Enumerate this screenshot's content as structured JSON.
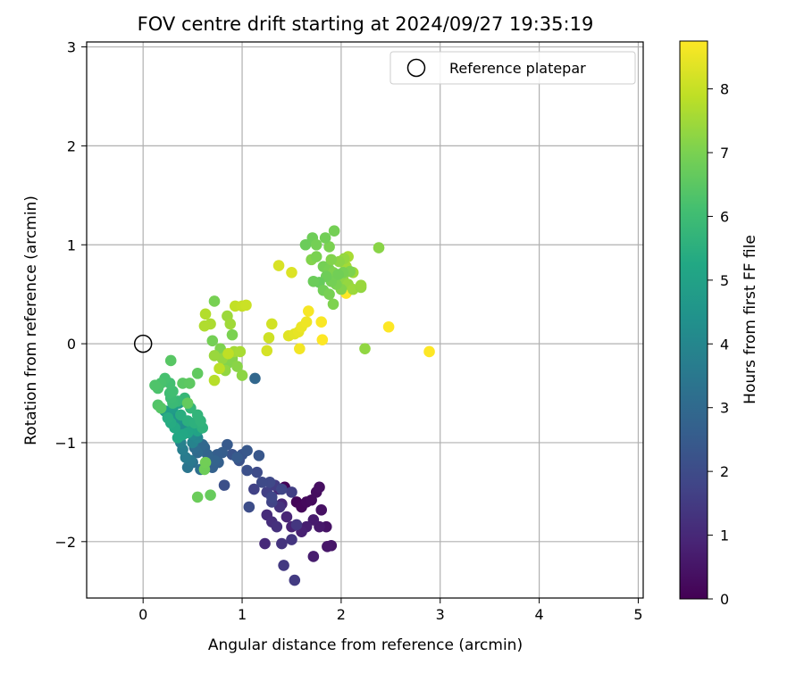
{
  "chart_data": {
    "type": "scatter",
    "title": "FOV centre drift starting at 2024/09/27 19:35:19",
    "xlabel": "Angular distance from reference (arcmin)",
    "ylabel": "Rotation from reference (arcmin)",
    "xlim": [
      -0.57,
      5.05
    ],
    "ylim": [
      -2.57,
      3.05
    ],
    "x_ticks": [
      0,
      1,
      2,
      3,
      4,
      5
    ],
    "y_ticks": [
      -2,
      -1,
      0,
      1,
      2,
      3
    ],
    "grid": true,
    "legend": {
      "position": "top-right",
      "entries": [
        "Reference platepar"
      ]
    },
    "reference_point": {
      "label": "Reference platepar",
      "x": 0,
      "y": 0
    },
    "colorbar": {
      "label": "Hours from first FF file",
      "colormap": "viridis",
      "range": [
        0,
        8.75
      ],
      "ticks": [
        0,
        1,
        2,
        3,
        4,
        5,
        6,
        7,
        8
      ]
    },
    "series": [
      {
        "points": [
          [
            1.43,
            -1.45,
            0.05
          ],
          [
            1.55,
            -1.6,
            0.1
          ],
          [
            1.6,
            -1.65,
            0.15
          ],
          [
            1.65,
            -1.6,
            0.2
          ],
          [
            1.7,
            -1.58,
            0.25
          ],
          [
            1.75,
            -1.5,
            0.3
          ],
          [
            1.78,
            -1.45,
            0.35
          ],
          [
            1.8,
            -1.68,
            0.4
          ],
          [
            1.85,
            -1.85,
            0.45
          ],
          [
            1.9,
            -2.04,
            0.5
          ],
          [
            1.86,
            -2.05,
            0.55
          ],
          [
            1.78,
            -1.85,
            0.6
          ],
          [
            1.72,
            -1.78,
            0.65
          ],
          [
            1.72,
            -2.15,
            0.7
          ],
          [
            1.65,
            -1.85,
            0.75
          ],
          [
            1.6,
            -1.9,
            0.8
          ],
          [
            1.5,
            -1.85,
            0.85
          ],
          [
            1.45,
            -1.75,
            0.9
          ],
          [
            1.4,
            -1.62,
            0.95
          ],
          [
            1.37,
            -1.47,
            1.0
          ],
          [
            1.23,
            -2.02,
            1.05
          ],
          [
            1.25,
            -1.73,
            1.1
          ],
          [
            1.3,
            -1.8,
            1.15
          ],
          [
            1.35,
            -1.85,
            1.2
          ],
          [
            1.38,
            -1.65,
            1.25
          ],
          [
            1.4,
            -2.02,
            1.3
          ],
          [
            1.5,
            -1.98,
            1.35
          ],
          [
            1.55,
            -1.83,
            1.4
          ],
          [
            1.42,
            -2.24,
            1.45
          ],
          [
            1.53,
            -2.39,
            1.5
          ],
          [
            1.33,
            -1.43,
            1.55
          ],
          [
            1.5,
            -1.5,
            1.6
          ],
          [
            1.25,
            -1.5,
            1.65
          ],
          [
            1.12,
            -1.47,
            1.7
          ],
          [
            1.3,
            -1.6,
            1.75
          ],
          [
            1.4,
            -1.47,
            1.8
          ],
          [
            1.3,
            -1.55,
            1.85
          ],
          [
            1.28,
            -1.4,
            1.9
          ],
          [
            1.2,
            -1.4,
            1.95
          ],
          [
            1.15,
            -1.3,
            2.0
          ],
          [
            1.07,
            -1.65,
            2.05
          ],
          [
            0.82,
            -1.43,
            2.1
          ],
          [
            1.05,
            -1.28,
            2.15
          ],
          [
            0.97,
            -1.18,
            2.2
          ],
          [
            0.9,
            -1.12,
            2.25
          ],
          [
            1.0,
            -1.12,
            2.3
          ],
          [
            1.17,
            -1.13,
            2.35
          ],
          [
            1.05,
            -1.08,
            2.4
          ],
          [
            0.85,
            -1.02,
            2.45
          ],
          [
            0.95,
            -1.15,
            2.5
          ],
          [
            0.8,
            -1.1,
            2.55
          ],
          [
            0.75,
            -1.12,
            2.6
          ],
          [
            0.76,
            -1.2,
            2.65
          ],
          [
            0.7,
            -1.25,
            2.7
          ],
          [
            0.72,
            -1.18,
            2.75
          ],
          [
            0.65,
            -1.12,
            2.8
          ],
          [
            0.62,
            -1.05,
            2.85
          ],
          [
            1.13,
            -0.35,
            2.9
          ],
          [
            0.6,
            -1.02,
            2.95
          ],
          [
            0.55,
            -1.1,
            3.0
          ],
          [
            0.52,
            -1.05,
            3.1
          ],
          [
            0.58,
            -1.27,
            3.2
          ],
          [
            0.5,
            -1.2,
            3.3
          ],
          [
            0.45,
            -1.25,
            3.4
          ],
          [
            0.48,
            -1.18,
            3.5
          ],
          [
            0.43,
            -1.15,
            3.6
          ],
          [
            0.4,
            -1.07,
            3.7
          ],
          [
            0.38,
            -1.0,
            3.8
          ],
          [
            0.5,
            -1.0,
            3.9
          ],
          [
            0.55,
            -0.95,
            4.0
          ],
          [
            0.5,
            -0.92,
            4.1
          ],
          [
            0.45,
            -0.85,
            4.2
          ],
          [
            0.4,
            -0.82,
            4.3
          ],
          [
            0.35,
            -0.78,
            4.4
          ],
          [
            0.3,
            -0.72,
            4.5
          ],
          [
            0.27,
            -0.68,
            4.6
          ],
          [
            0.22,
            -0.68,
            4.7
          ],
          [
            0.3,
            -0.65,
            4.8
          ],
          [
            0.36,
            -0.6,
            4.9
          ],
          [
            0.42,
            -0.58,
            5.0
          ],
          [
            0.55,
            -0.88,
            5.05
          ],
          [
            0.5,
            -0.85,
            5.1
          ],
          [
            0.45,
            -0.9,
            5.15
          ],
          [
            0.4,
            -0.92,
            5.2
          ],
          [
            0.35,
            -0.95,
            5.25
          ],
          [
            0.32,
            -0.85,
            5.3
          ],
          [
            0.28,
            -0.8,
            5.35
          ],
          [
            0.25,
            -0.75,
            5.4
          ],
          [
            0.38,
            -0.72,
            5.45
          ],
          [
            0.45,
            -0.78,
            5.5
          ],
          [
            0.52,
            -0.8,
            5.55
          ],
          [
            0.6,
            -0.85,
            5.6
          ],
          [
            0.58,
            -0.78,
            5.65
          ],
          [
            0.55,
            -0.72,
            5.7
          ],
          [
            0.48,
            -0.65,
            5.75
          ],
          [
            0.42,
            -0.55,
            5.8
          ],
          [
            0.35,
            -0.58,
            5.85
          ],
          [
            0.3,
            -0.6,
            5.9
          ],
          [
            0.28,
            -0.55,
            5.95
          ],
          [
            0.27,
            -0.5,
            6.0
          ],
          [
            0.3,
            -0.48,
            6.05
          ],
          [
            0.27,
            -0.4,
            6.1
          ],
          [
            0.22,
            -0.35,
            6.15
          ],
          [
            0.18,
            -0.4,
            6.2
          ],
          [
            0.15,
            -0.45,
            6.25
          ],
          [
            0.12,
            -0.42,
            6.3
          ],
          [
            0.15,
            -0.62,
            6.35
          ],
          [
            0.18,
            -0.65,
            6.4
          ],
          [
            0.28,
            -0.17,
            6.45
          ],
          [
            0.4,
            -0.4,
            6.5
          ],
          [
            0.47,
            -0.4,
            6.55
          ],
          [
            0.55,
            -0.3,
            6.6
          ],
          [
            0.45,
            -0.6,
            6.65
          ],
          [
            0.68,
            -1.53,
            6.7
          ],
          [
            0.55,
            -1.55,
            6.75
          ],
          [
            0.62,
            -1.27,
            6.8
          ],
          [
            0.63,
            -1.2,
            6.85
          ],
          [
            0.7,
            0.03,
            6.9
          ],
          [
            0.72,
            0.43,
            6.95
          ],
          [
            0.9,
            0.09,
            7.0
          ],
          [
            0.78,
            -0.05,
            7.05
          ],
          [
            0.85,
            -0.2,
            7.1
          ],
          [
            0.9,
            -0.15,
            7.15
          ],
          [
            0.95,
            -0.23,
            7.2
          ],
          [
            1.0,
            -0.32,
            7.25
          ],
          [
            0.83,
            -0.27,
            7.3
          ],
          [
            0.8,
            -0.15,
            7.35
          ],
          [
            0.72,
            -0.12,
            7.4
          ],
          [
            0.85,
            0.28,
            7.45
          ],
          [
            0.88,
            0.2,
            7.5
          ],
          [
            0.92,
            -0.08,
            7.55
          ],
          [
            0.98,
            -0.08,
            7.6
          ],
          [
            0.68,
            0.2,
            7.65
          ],
          [
            0.62,
            0.18,
            7.7
          ],
          [
            0.63,
            0.3,
            7.75
          ],
          [
            0.72,
            -0.37,
            7.8
          ],
          [
            0.77,
            -0.25,
            7.85
          ],
          [
            0.86,
            -0.1,
            7.9
          ],
          [
            0.93,
            0.38,
            7.95
          ],
          [
            1.0,
            0.38,
            8.0
          ],
          [
            1.04,
            0.39,
            8.05
          ],
          [
            1.27,
            0.06,
            8.1
          ],
          [
            1.3,
            0.2,
            8.15
          ],
          [
            1.25,
            -0.07,
            8.2
          ],
          [
            1.37,
            0.79,
            8.25
          ],
          [
            1.5,
            0.72,
            8.3
          ],
          [
            1.47,
            0.08,
            8.35
          ],
          [
            1.53,
            0.1,
            8.4
          ],
          [
            1.57,
            0.12,
            8.45
          ],
          [
            1.6,
            0.17,
            8.5
          ],
          [
            1.65,
            0.22,
            8.55
          ],
          [
            1.58,
            -0.05,
            8.6
          ],
          [
            1.67,
            0.33,
            8.65
          ],
          [
            1.8,
            0.22,
            8.7
          ],
          [
            1.81,
            0.04,
            8.75
          ],
          [
            2.05,
            0.51,
            8.75
          ],
          [
            2.48,
            0.17,
            8.75
          ],
          [
            2.89,
            -0.08,
            8.75
          ],
          [
            2.24,
            -0.05,
            7.3
          ],
          [
            2.38,
            0.97,
            7.2
          ],
          [
            1.7,
            0.85,
            7.1
          ],
          [
            1.75,
            0.88,
            7.0
          ],
          [
            1.82,
            0.78,
            6.9
          ],
          [
            1.88,
            0.75,
            6.95
          ],
          [
            1.92,
            0.72,
            7.05
          ],
          [
            1.97,
            0.68,
            7.15
          ],
          [
            2.02,
            0.65,
            7.25
          ],
          [
            2.07,
            0.6,
            7.35
          ],
          [
            2.12,
            0.55,
            7.45
          ],
          [
            2.0,
            0.55,
            7.1
          ],
          [
            1.95,
            0.6,
            7.0
          ],
          [
            1.9,
            0.63,
            6.9
          ],
          [
            1.85,
            0.68,
            6.8
          ],
          [
            1.78,
            0.62,
            6.7
          ],
          [
            1.72,
            0.63,
            6.75
          ],
          [
            1.82,
            0.54,
            6.85
          ],
          [
            1.88,
            0.5,
            6.95
          ],
          [
            1.92,
            0.4,
            7.05
          ],
          [
            2.2,
            0.57,
            7.3
          ],
          [
            2.2,
            0.59,
            7.4
          ],
          [
            2.12,
            0.72,
            7.5
          ],
          [
            2.05,
            0.78,
            7.55
          ],
          [
            2.07,
            0.88,
            7.6
          ],
          [
            2.03,
            0.86,
            7.35
          ],
          [
            1.98,
            0.83,
            7.25
          ],
          [
            1.9,
            0.85,
            7.1
          ],
          [
            1.88,
            0.98,
            7.0
          ],
          [
            1.93,
            1.14,
            6.9
          ],
          [
            1.84,
            1.07,
            6.85
          ],
          [
            1.71,
            1.07,
            6.8
          ],
          [
            1.64,
            1.0,
            6.75
          ],
          [
            1.75,
            1.0,
            6.9
          ],
          [
            2.09,
            0.73,
            7.05
          ],
          [
            2.02,
            0.72,
            6.95
          ],
          [
            1.97,
            0.7,
            6.85
          ]
        ]
      }
    ]
  }
}
